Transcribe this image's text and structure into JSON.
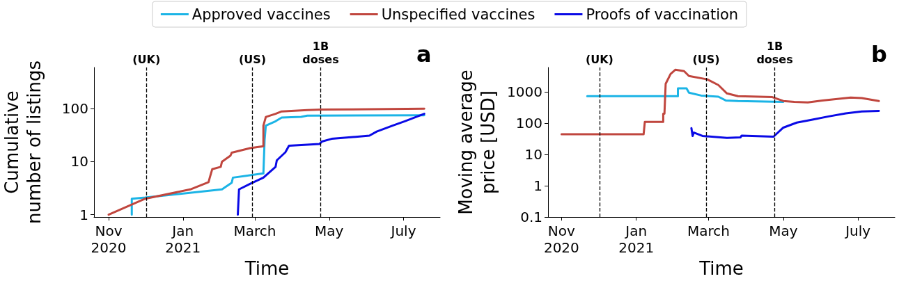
{
  "chart_data": [
    {
      "type": "line",
      "xlabel": "Time",
      "ylabel": "Cumulative\nnumber of listings",
      "log": "y",
      "legend": "top",
      "line_style": "solid",
      "marker": "none",
      "xlim": [
        "2020-10-20",
        "2021-07-31"
      ],
      "xticks": [
        {
          "value": "2020-11-01",
          "label": "Nov\n2020"
        },
        {
          "value": "2021-01-01",
          "label": "Jan\n2021"
        },
        {
          "value": "2021-03-01",
          "label": "March"
        },
        {
          "value": "2021-05-01",
          "label": "May"
        },
        {
          "value": "2021-07-01",
          "label": "July"
        }
      ],
      "ylim": [
        0.9,
        600
      ],
      "yticks": [
        1,
        10,
        100
      ],
      "ref_lines": [
        {
          "axis": "x",
          "value": "2020-12-02",
          "label": "(UK)",
          "line_style": "dashed",
          "color": "#000000"
        },
        {
          "axis": "x",
          "value": "2021-02-27",
          "label": "(US)",
          "line_style": "dashed",
          "color": "#000000"
        },
        {
          "axis": "x",
          "value": "2021-04-24",
          "label": "1B\ndoses",
          "line_style": "dashed",
          "color": "#000000"
        }
      ],
      "annotations": [
        "a"
      ],
      "series": [
        {
          "name": "Approved vaccines",
          "color": "#1bb4e6",
          "x": [
            "2020-11-20",
            "2020-11-20",
            "2020-12-01",
            "2021-02-02",
            "2021-02-10",
            "2021-02-11",
            "2021-03-08",
            "2021-03-09",
            "2021-03-10",
            "2021-03-18",
            "2021-03-23",
            "2021-04-08",
            "2021-04-13",
            "2021-07-18"
          ],
          "values": [
            1,
            2,
            2.1,
            3,
            4,
            5,
            6,
            26,
            48,
            58,
            68,
            70,
            74,
            75
          ]
        },
        {
          "name": "Unspecified vaccines",
          "color": "#c0463e",
          "x": [
            "2020-11-01",
            "2020-12-01",
            "2021-01-07",
            "2021-01-22",
            "2021-01-23",
            "2021-01-25",
            "2021-02-01",
            "2021-02-02",
            "2021-02-09",
            "2021-02-10",
            "2021-02-25",
            "2021-03-08",
            "2021-03-08",
            "2021-03-10",
            "2021-03-18",
            "2021-03-23",
            "2021-04-13",
            "2021-04-25",
            "2021-07-18"
          ],
          "values": [
            1,
            2,
            3,
            4.1,
            5,
            7.2,
            8,
            10,
            13,
            14.8,
            18,
            19.6,
            48,
            70,
            80,
            89,
            94,
            96,
            100
          ]
        },
        {
          "name": "Proofs of vaccination",
          "color": "#0a0ae6",
          "x": [
            "2021-02-15",
            "2021-02-16",
            "2021-02-25",
            "2021-03-08",
            "2021-03-18",
            "2021-03-19",
            "2021-03-26",
            "2021-03-29",
            "2021-04-23",
            "2021-04-25",
            "2021-05-03",
            "2021-06-03",
            "2021-06-09",
            "2021-06-22",
            "2021-07-02",
            "2021-07-18"
          ],
          "values": [
            1,
            3,
            3.8,
            5,
            8,
            10.6,
            15,
            20,
            21.5,
            24,
            27,
            31,
            37,
            48,
            58,
            80
          ]
        }
      ]
    },
    {
      "type": "line",
      "xlabel": "Time",
      "ylabel": "Moving average\nprice [USD]",
      "log": "y",
      "line_style": "solid",
      "marker": "none",
      "xlim": [
        "2020-10-21",
        "2021-07-31"
      ],
      "xticks": [
        {
          "value": "2020-11-01",
          "label": "Nov\n2020"
        },
        {
          "value": "2021-01-01",
          "label": "Jan\n2021"
        },
        {
          "value": "2021-03-01",
          "label": "March"
        },
        {
          "value": "2021-05-01",
          "label": "May"
        },
        {
          "value": "2021-07-01",
          "label": "July"
        }
      ],
      "ylim": [
        0.1,
        6000
      ],
      "yticks": [
        0.1,
        1,
        10,
        100,
        1000
      ],
      "ref_lines": [
        {
          "axis": "x",
          "value": "2020-12-02",
          "label": "(UK)",
          "line_style": "dashed",
          "color": "#000000"
        },
        {
          "axis": "x",
          "value": "2021-02-27",
          "label": "(US)",
          "line_style": "dashed",
          "color": "#000000"
        },
        {
          "axis": "x",
          "value": "2021-04-24",
          "label": "1B\ndoses",
          "line_style": "dashed",
          "color": "#000000"
        }
      ],
      "annotations": [
        "b"
      ],
      "series": [
        {
          "color": "#1bb4e6",
          "x": [
            "2020-11-22",
            "2021-02-04",
            "2021-02-04",
            "2021-02-11",
            "2021-02-13",
            "2021-02-23",
            "2021-03-09",
            "2021-03-15",
            "2021-03-25",
            "2021-05-01"
          ],
          "values": [
            730,
            730,
            1300,
            1300,
            940,
            760,
            700,
            530,
            510,
            480
          ]
        },
        {
          "color": "#c0463e",
          "x": [
            "2020-11-01",
            "2021-01-07",
            "2021-01-08",
            "2021-01-23",
            "2021-01-23",
            "2021-01-24",
            "2021-01-25",
            "2021-01-29",
            "2021-02-02",
            "2021-02-09",
            "2021-02-13",
            "2021-02-28",
            "2021-03-09",
            "2021-03-16",
            "2021-03-25",
            "2021-04-22",
            "2021-05-01",
            "2021-05-10",
            "2021-05-21",
            "2021-06-02",
            "2021-06-25",
            "2021-07-04",
            "2021-07-18"
          ],
          "values": [
            44,
            44,
            110,
            110,
            200,
            200,
            1800,
            3700,
            5100,
            4600,
            3200,
            2500,
            1650,
            890,
            730,
            680,
            510,
            480,
            460,
            530,
            660,
            630,
            510
          ]
        },
        {
          "color": "#0a0ae6",
          "x": [
            "2021-02-15",
            "2021-02-16",
            "2021-02-17",
            "2021-02-24",
            "2021-03-16",
            "2021-03-27",
            "2021-03-28",
            "2021-04-23",
            "2021-05-01",
            "2021-05-12",
            "2021-05-24",
            "2021-06-07",
            "2021-06-21",
            "2021-07-04",
            "2021-07-18"
          ],
          "values": [
            69,
            39,
            50,
            39,
            34,
            35,
            40,
            37,
            72,
            104,
            128,
            164,
            206,
            235,
            245
          ]
        }
      ]
    }
  ]
}
